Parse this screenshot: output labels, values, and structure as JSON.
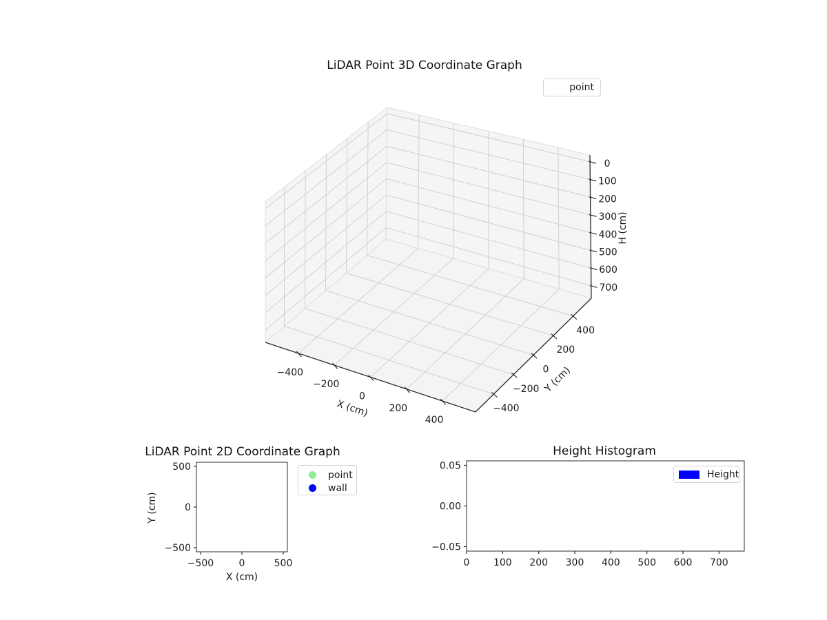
{
  "figure": {
    "background": "#ffffff",
    "text_color": "#1a1a1a",
    "pane_color": "#f5f5f5",
    "grid_color": "#d0d0d0",
    "spine_color": "#2b2b2b"
  },
  "chart_data": [
    {
      "id": "plot3d",
      "type": "scatter3d",
      "title": "LiDAR Point 3D Coordinate Graph",
      "xlabel": "X (cm)",
      "ylabel": "Y (cm)",
      "zlabel": "H (cm)",
      "xticks": [
        -400,
        -200,
        0,
        200,
        400
      ],
      "yticks": [
        -400,
        -200,
        0,
        200,
        400
      ],
      "zticks": [
        0,
        100,
        200,
        300,
        400,
        500,
        600,
        700
      ],
      "xlim": [
        -583,
        583
      ],
      "ylim": [
        -583,
        583
      ],
      "zlim": [
        -38,
        770
      ],
      "zaxis_inverted": true,
      "grid": true,
      "legend": {
        "position": "upper-right-outside",
        "entries": [
          {
            "label": "point",
            "marker": "none",
            "color": null
          }
        ]
      },
      "series": [
        {
          "name": "point",
          "points": []
        }
      ]
    },
    {
      "id": "plot2d",
      "type": "scatter",
      "title": "LiDAR Point 2D Coordinate Graph",
      "xlabel": "X (cm)",
      "ylabel": "Y (cm)",
      "xticks": [
        -500,
        0,
        500
      ],
      "yticks": [
        500,
        0,
        -500
      ],
      "xlim": [
        -550,
        550
      ],
      "ylim": [
        -550,
        550
      ],
      "grid": false,
      "legend": {
        "position": "outside-right",
        "entries": [
          {
            "label": "point",
            "marker": "circle",
            "color": "#90EE90"
          },
          {
            "label": "wall",
            "marker": "circle",
            "color": "#0000FF"
          }
        ]
      },
      "series": [
        {
          "name": "point",
          "color": "#90EE90",
          "points": []
        },
        {
          "name": "wall",
          "color": "#0000FF",
          "points": []
        }
      ]
    },
    {
      "id": "hist",
      "type": "bar",
      "title": "Height Histogram",
      "xlabel": "",
      "ylabel": "",
      "xticks": [
        0,
        100,
        200,
        300,
        400,
        500,
        600,
        700
      ],
      "yticks": [
        0.05,
        0,
        -0.05
      ],
      "ytick_decimals": 2,
      "xlim": [
        0,
        770
      ],
      "ylim": [
        -0.0555,
        0.0555
      ],
      "grid": false,
      "legend": {
        "position": "upper-right",
        "entries": [
          {
            "label": "Height",
            "marker": "rect",
            "color": "#0000FF"
          }
        ]
      },
      "values": []
    }
  ]
}
